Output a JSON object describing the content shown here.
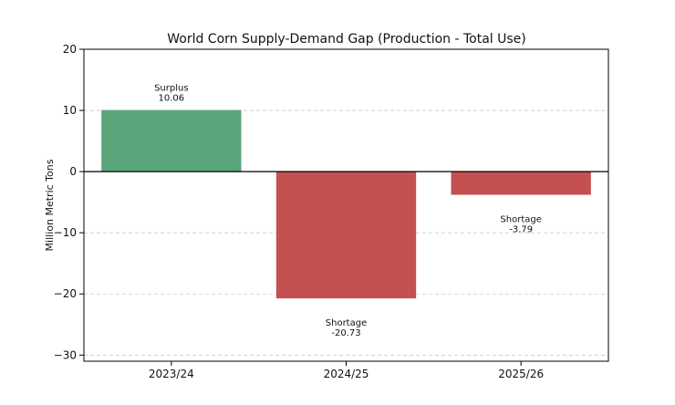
{
  "chart_data": {
    "type": "bar",
    "title": "World Corn Supply-Demand Gap (Production - Total Use)",
    "xlabel": "",
    "ylabel": "Million Metric Tons",
    "categories": [
      "2023/24",
      "2024/25",
      "2025/26"
    ],
    "values": [
      10.06,
      -20.73,
      -3.79
    ],
    "ylim": [
      -31,
      20
    ],
    "yticks": [
      20,
      10,
      0,
      -10,
      -20,
      -30
    ],
    "ytick_labels": [
      "20",
      "10",
      "0",
      "−10",
      "−20",
      "−30"
    ],
    "grid": true,
    "annotations": [
      {
        "status": "Surplus",
        "value": "10.06"
      },
      {
        "status": "Shortage",
        "value": "-20.73"
      },
      {
        "status": "Shortage",
        "value": "-3.79"
      }
    ],
    "colors": {
      "surplus": "#5aa57a",
      "shortage": "#c45050",
      "grid": "#cccccc",
      "axis": "#000000"
    }
  }
}
